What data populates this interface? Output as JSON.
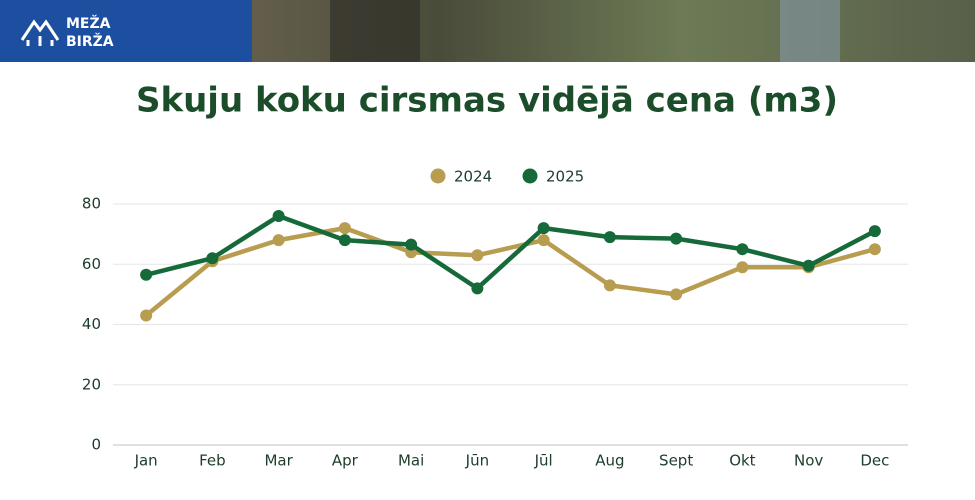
{
  "header": {
    "logo_top": "MEŽA",
    "logo_bottom": "BIRŽA"
  },
  "chart_data": {
    "type": "line",
    "title": "Skuju koku cirsmas vidējā cena (m3)",
    "categories": [
      "Jan",
      "Feb",
      "Mar",
      "Apr",
      "Mai",
      "Jūn",
      "Jūl",
      "Aug",
      "Sept",
      "Okt",
      "Nov",
      "Dec"
    ],
    "series": [
      {
        "name": "2024",
        "color": "#b89d50",
        "values": [
          43,
          61,
          68,
          72,
          64,
          63,
          68,
          53,
          50,
          59,
          59,
          65
        ]
      },
      {
        "name": "2025",
        "color": "#166a3a",
        "values": [
          56.5,
          62,
          76,
          68,
          66.5,
          52,
          72,
          69,
          68.5,
          65,
          59.5,
          71
        ]
      }
    ],
    "ylim": [
      0,
      80
    ],
    "yticks": [
      0,
      20,
      40,
      60,
      80
    ],
    "grid": true,
    "legend": "top"
  }
}
